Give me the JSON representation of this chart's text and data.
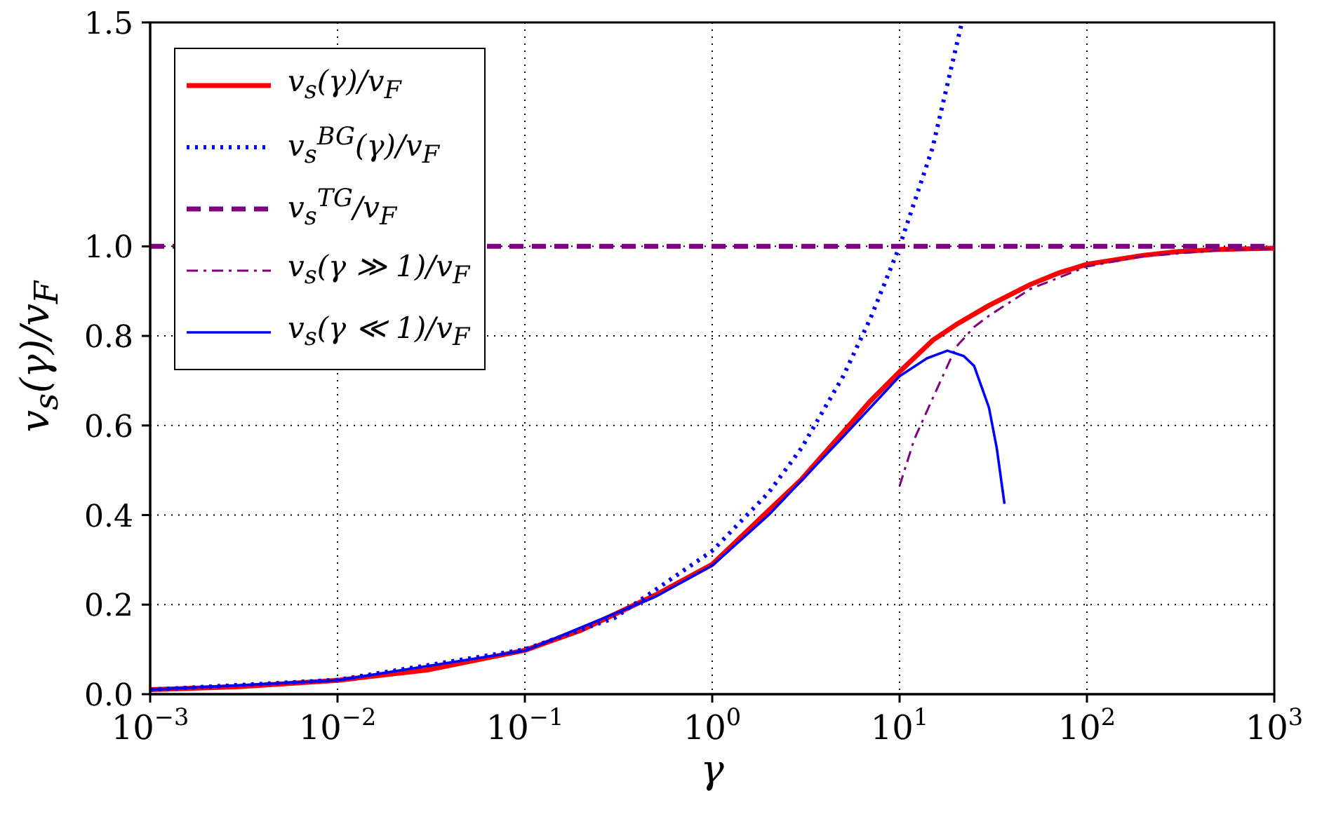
{
  "chart_data": {
    "type": "line",
    "xlabel": "γ",
    "ylabel": "v$_{s}$(γ)/v$_{F}$",
    "log": "x",
    "grid": true,
    "legend": "top left",
    "marker": "none",
    "xlim": [
      0.001,
      1000
    ],
    "xticks": [
      {
        "value": 0.001,
        "label": "10$^{−3}$"
      },
      {
        "value": 0.01,
        "label": "10$^{−2}$"
      },
      {
        "value": 0.1,
        "label": "10$^{−1}$"
      },
      {
        "value": 1,
        "label": "10$^{0}$"
      },
      {
        "value": 10,
        "label": "10$^{1}$"
      },
      {
        "value": 100,
        "label": "10$^{2}$"
      },
      {
        "value": 1000,
        "label": "10$^{3}$"
      }
    ],
    "ylim": [
      0,
      1.5
    ],
    "yticks": [
      {
        "value": 0,
        "label": "0.0"
      },
      {
        "value": 0.2,
        "label": "0.2"
      },
      {
        "value": 0.4,
        "label": "0.4"
      },
      {
        "value": 0.6,
        "label": "0.6"
      },
      {
        "value": 0.8,
        "label": "0.8"
      },
      {
        "value": 1,
        "label": "1.0"
      },
      {
        "value": 1.5,
        "label": "1.5"
      }
    ],
    "series": [
      {
        "name": "v$_{s}$(γ)/v$_{F}$",
        "color": "#ff0000",
        "line_style": "solid",
        "x": [
          0.001,
          0.003,
          0.01,
          0.03,
          0.1,
          0.2,
          0.5,
          1,
          2,
          3,
          5,
          7,
          10,
          15,
          20,
          30,
          50,
          70,
          100,
          200,
          300,
          500,
          1000
        ],
        "values": [
          0.01,
          0.017,
          0.031,
          0.054,
          0.098,
          0.143,
          0.222,
          0.29,
          0.41,
          0.48,
          0.585,
          0.655,
          0.72,
          0.79,
          0.825,
          0.868,
          0.915,
          0.94,
          0.96,
          0.98,
          0.988,
          0.993,
          0.996
        ]
      },
      {
        "name": "v$_{s}$$^{BG}$(γ)/v$_{F}$",
        "color": "#0000ff",
        "line_style": "dotted",
        "x": [
          0.001,
          0.01,
          0.1,
          0.3,
          1,
          2,
          3,
          5,
          7,
          10,
          15,
          21.5
        ],
        "values": [
          0.01,
          0.032,
          0.1,
          0.17,
          0.32,
          0.45,
          0.55,
          0.71,
          0.84,
          1.0,
          1.22,
          1.5
        ]
      },
      {
        "name": "v$_{s}$$^{TG}$/v$_{F}$",
        "color": "#800080",
        "line_style": "dashed",
        "x": [
          0.001,
          1000
        ],
        "values": [
          1,
          1
        ]
      },
      {
        "name": "v$_{s}$(γ ≫ 1)/v$_{F}$",
        "color": "#800080",
        "line_style": "dashdot",
        "x": [
          10,
          12,
          15,
          20,
          25,
          30,
          50,
          100,
          200,
          500,
          1000
        ],
        "values": [
          0.465,
          0.57,
          0.66,
          0.775,
          0.82,
          0.845,
          0.905,
          0.955,
          0.978,
          0.991,
          0.995
        ]
      },
      {
        "name": "v$_{s}$(γ ≪ 1)/v$_{F}$",
        "color": "#0000ff",
        "line_style": "solid",
        "x": [
          0.001,
          0.01,
          0.1,
          0.5,
          1,
          2,
          5,
          10,
          14,
          18,
          22,
          25,
          30,
          33,
          36.3
        ],
        "values": [
          0.01,
          0.031,
          0.097,
          0.218,
          0.287,
          0.4,
          0.575,
          0.71,
          0.75,
          0.767,
          0.755,
          0.733,
          0.64,
          0.55,
          0.425
        ]
      }
    ]
  }
}
